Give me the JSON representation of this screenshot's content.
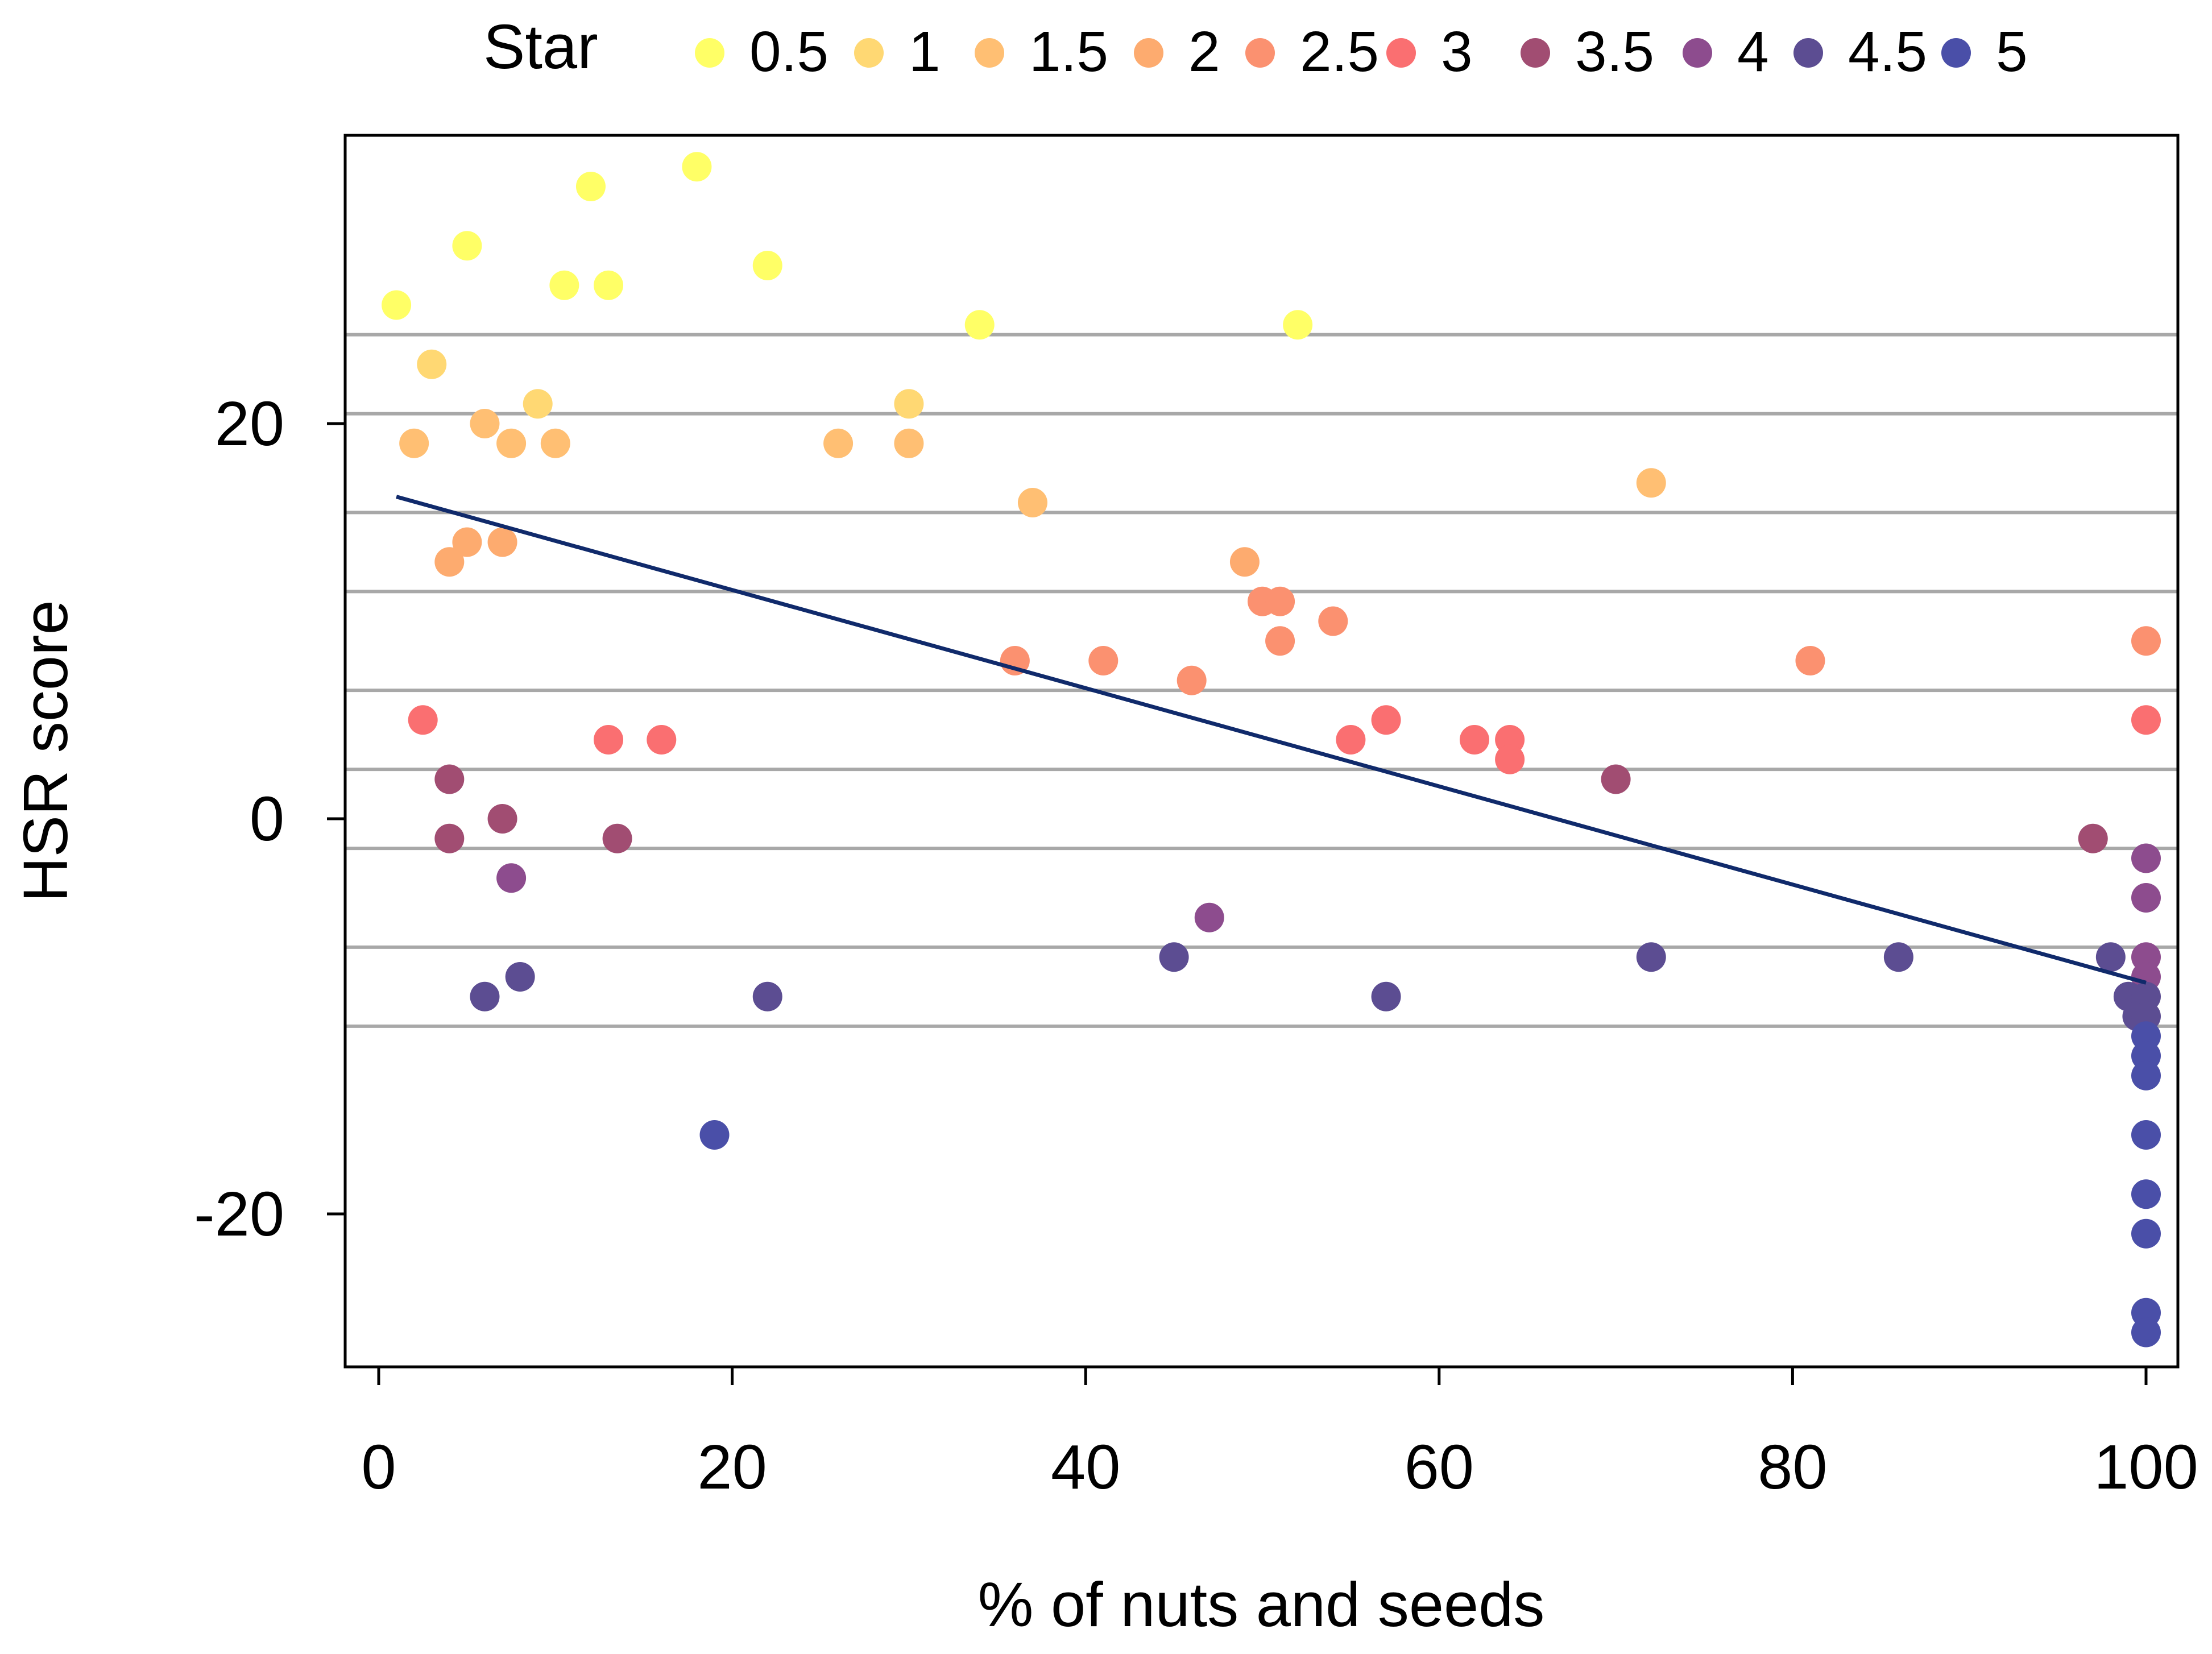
{
  "chart_data": {
    "type": "scatter",
    "title": "",
    "xlabel": "% of nuts and seeds",
    "ylabel": "HSR score",
    "xlim": [
      -2,
      102
    ],
    "ylim": [
      -28,
      35
    ],
    "xticks": [
      0,
      20,
      40,
      60,
      80,
      100
    ],
    "yticks": [
      -20,
      0,
      20
    ],
    "hlines": [
      24.5,
      20.5,
      15.5,
      11.5,
      6.5,
      2.5,
      -1.5,
      -6.5,
      -10.5
    ],
    "hline_color": "#a8a8a8",
    "legend": {
      "title": "Star",
      "position": "top",
      "entries": [
        {
          "label": "0.5",
          "color": "#ffff66"
        },
        {
          "label": "1",
          "color": "#ffd873"
        },
        {
          "label": "1.5",
          "color": "#ffbf73"
        },
        {
          "label": "2",
          "color": "#fdab6f"
        },
        {
          "label": "2.5",
          "color": "#fb9170"
        },
        {
          "label": "3",
          "color": "#fa6f71"
        },
        {
          "label": "3.5",
          "color": "#a14d72"
        },
        {
          "label": "4",
          "color": "#8d4c8e"
        },
        {
          "label": "4.5",
          "color": "#5c4d92"
        },
        {
          "label": "5",
          "color": "#4a4fa8"
        }
      ]
    },
    "regression": {
      "x": [
        1,
        100
      ],
      "y": [
        16.3,
        -8.3
      ],
      "color": "#102a6b"
    },
    "series": [
      {
        "name": "0.5",
        "color": "#ffff66",
        "points": [
          [
            1,
            26
          ],
          [
            5,
            29
          ],
          [
            10.5,
            27
          ],
          [
            12,
            32
          ],
          [
            13,
            27
          ],
          [
            18,
            33
          ],
          [
            22,
            28
          ],
          [
            34,
            25
          ],
          [
            52,
            25
          ]
        ]
      },
      {
        "name": "1",
        "color": "#ffd873",
        "points": [
          [
            3,
            23
          ],
          [
            9,
            21
          ],
          [
            30,
            21
          ]
        ]
      },
      {
        "name": "1.5",
        "color": "#ffbf73",
        "points": [
          [
            2,
            19
          ],
          [
            6,
            20
          ],
          [
            7.5,
            19
          ],
          [
            10,
            19
          ],
          [
            26,
            19
          ],
          [
            30,
            19
          ],
          [
            37,
            16
          ],
          [
            72,
            17
          ]
        ]
      },
      {
        "name": "2",
        "color": "#fdab6f",
        "points": [
          [
            4,
            13
          ],
          [
            5,
            14
          ],
          [
            7,
            14
          ],
          [
            49,
            13
          ]
        ]
      },
      {
        "name": "2.5",
        "color": "#fb9170",
        "points": [
          [
            36,
            8
          ],
          [
            41,
            8
          ],
          [
            46,
            7
          ],
          [
            50,
            11
          ],
          [
            51,
            11
          ],
          [
            51,
            9
          ],
          [
            54,
            10
          ],
          [
            81,
            8
          ],
          [
            100,
            9
          ]
        ]
      },
      {
        "name": "3",
        "color": "#fa6f71",
        "points": [
          [
            2.5,
            5
          ],
          [
            13,
            4
          ],
          [
            16,
            4
          ],
          [
            55,
            4
          ],
          [
            57,
            5
          ],
          [
            62,
            4
          ],
          [
            64,
            4
          ],
          [
            64,
            3
          ],
          [
            100,
            5
          ]
        ]
      },
      {
        "name": "3.5",
        "color": "#a14d72",
        "points": [
          [
            4,
            2
          ],
          [
            4,
            -1
          ],
          [
            7,
            0
          ],
          [
            13.5,
            -1
          ],
          [
            70,
            2
          ],
          [
            97,
            -1
          ]
        ]
      },
      {
        "name": "4",
        "color": "#8d4c8e",
        "points": [
          [
            7.5,
            -3
          ],
          [
            47,
            -5
          ],
          [
            100,
            -2
          ],
          [
            100,
            -4
          ],
          [
            100,
            -7
          ],
          [
            100,
            -8
          ]
        ]
      },
      {
        "name": "4.5",
        "color": "#5c4d92",
        "points": [
          [
            6,
            -9
          ],
          [
            8,
            -8
          ],
          [
            22,
            -9
          ],
          [
            45,
            -7
          ],
          [
            57,
            -9
          ],
          [
            72,
            -7
          ],
          [
            86,
            -7
          ],
          [
            98,
            -7
          ],
          [
            99,
            -9
          ],
          [
            99.5,
            -10
          ],
          [
            100,
            -9
          ],
          [
            100,
            -10
          ]
        ]
      },
      {
        "name": "5",
        "color": "#4a4fa8",
        "points": [
          [
            19,
            -16
          ],
          [
            100,
            -11
          ],
          [
            100,
            -12
          ],
          [
            100,
            -13
          ],
          [
            100,
            -16
          ],
          [
            100,
            -19
          ],
          [
            100,
            -21
          ],
          [
            100,
            -25
          ],
          [
            100,
            -26
          ]
        ]
      }
    ]
  }
}
